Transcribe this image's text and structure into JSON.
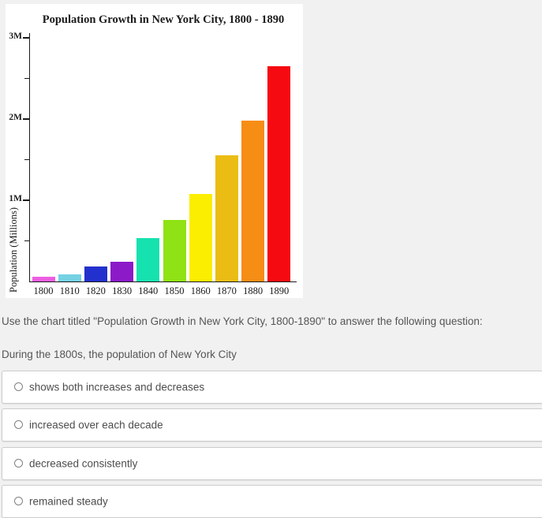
{
  "chart": {
    "title": "Population Growth in New York City, 1800 - 1890",
    "y_axis_title": "Population (Millions)"
  },
  "chart_data": {
    "type": "bar",
    "title": "Population Growth in New York City, 1800 - 1890",
    "xlabel": "",
    "ylabel": "Population (Millions)",
    "categories": [
      "1800",
      "1810",
      "1820",
      "1830",
      "1840",
      "1850",
      "1860",
      "1870",
      "1880",
      "1890"
    ],
    "values": [
      0.06,
      0.09,
      0.18,
      0.24,
      0.53,
      0.76,
      1.08,
      1.55,
      1.98,
      2.65
    ],
    "unit": "millions of people",
    "bar_colors": [
      "#ED5EE1",
      "#74D2E4",
      "#2231CD",
      "#8C1AC8",
      "#16E2AF",
      "#8FE214",
      "#FBEE00",
      "#EBBD14",
      "#F68D15",
      "#F50A11"
    ],
    "ylim": [
      0,
      3.05
    ],
    "ytick_labels": {
      "1": "1M",
      "2": "2M",
      "3": "3M"
    },
    "minor_ticks": [
      0.5,
      1.5,
      2.5
    ],
    "grid": false,
    "legend": null
  },
  "question": {
    "instruction": "Use the chart titled \"Population Growth in New York City, 1800-1890\" to answer the following question:",
    "prompt": "During the 1800s, the population of New York City",
    "options": [
      {
        "label": "shows both increases and decreases",
        "selected": false
      },
      {
        "label": "increased over each decade",
        "selected": false
      },
      {
        "label": "decreased consistently",
        "selected": false
      },
      {
        "label": "remained steady",
        "selected": false
      }
    ]
  }
}
